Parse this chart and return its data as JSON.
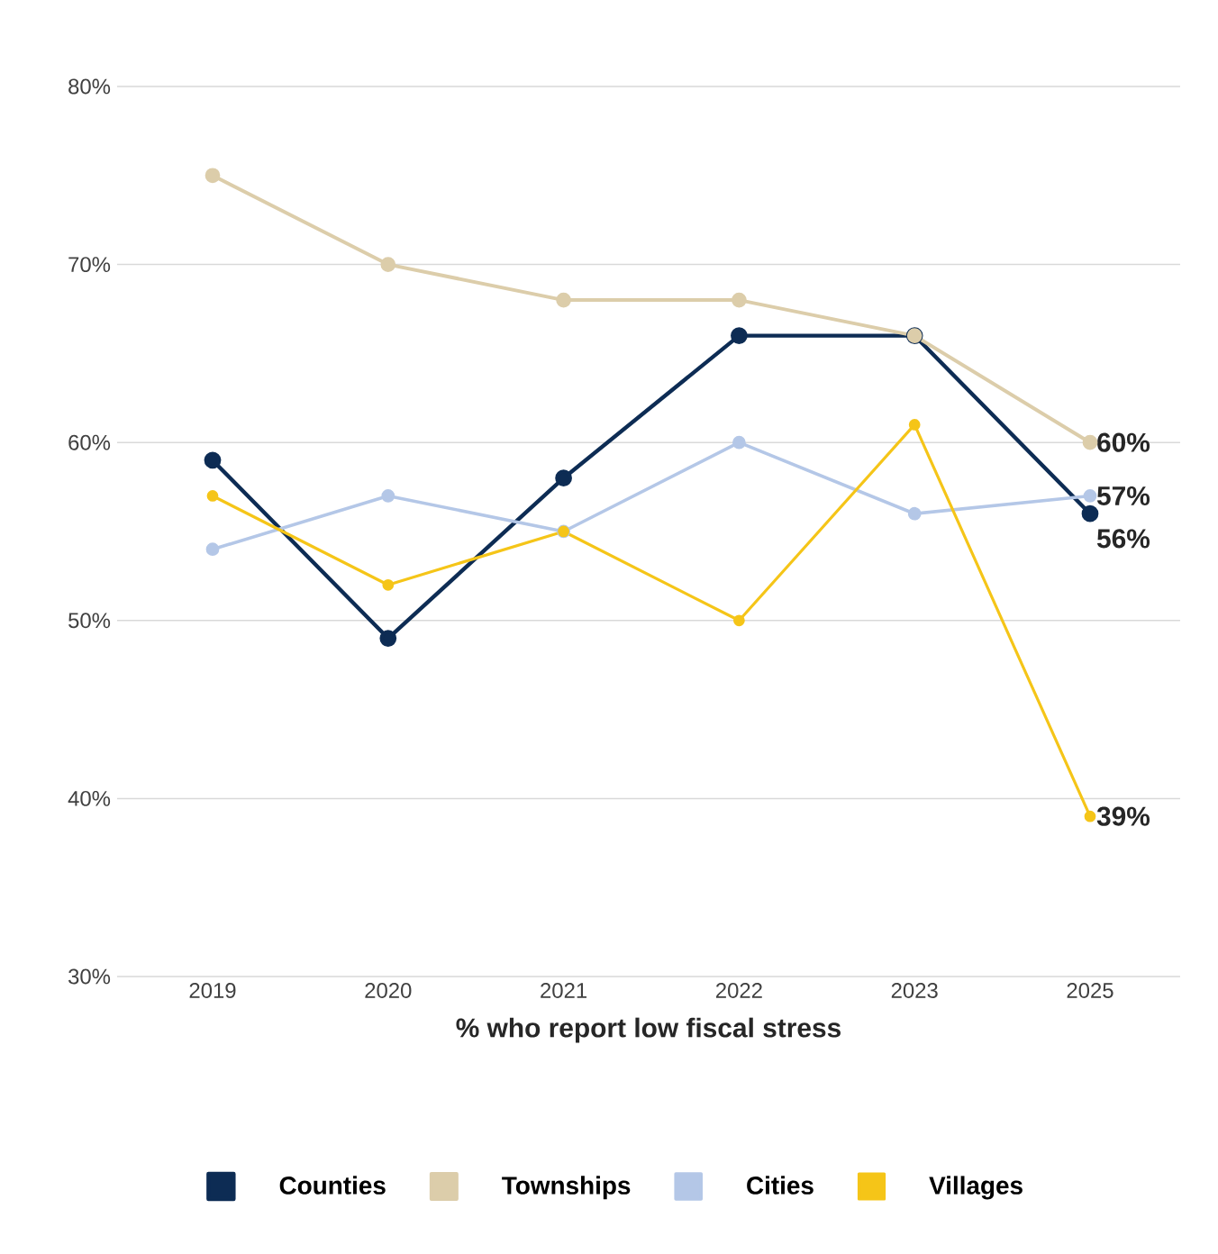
{
  "chart_data": {
    "type": "line",
    "xlabel": "% who report low fiscal stress",
    "categories": [
      "2019",
      "2020",
      "2021",
      "2022",
      "2023",
      "2025"
    ],
    "series": [
      {
        "name": "Counties",
        "color": "#0d2c54",
        "values": [
          59,
          49,
          58,
          66,
          66,
          56
        ],
        "value_labels": [
          null,
          null,
          null,
          null,
          null,
          "56%"
        ]
      },
      {
        "name": "Townships",
        "color": "#dccdaa",
        "values": [
          75,
          70,
          68,
          68,
          66,
          60
        ],
        "value_labels": [
          null,
          null,
          null,
          null,
          null,
          "60%"
        ]
      },
      {
        "name": "Cities",
        "color": "#b4c7e7",
        "values": [
          54,
          57,
          55,
          60,
          56,
          57
        ],
        "value_labels": [
          null,
          null,
          null,
          null,
          null,
          "57%"
        ]
      },
      {
        "name": "Villages",
        "color": "#f5c518",
        "values": [
          57,
          52,
          55,
          50,
          61,
          39
        ],
        "value_labels": [
          null,
          null,
          null,
          null,
          null,
          "39%"
        ]
      }
    ],
    "ylim": [
      30,
      80
    ],
    "yticks": [
      {
        "value": 30,
        "label": "30%"
      },
      {
        "value": 40,
        "label": "40%"
      },
      {
        "value": 50,
        "label": "50%"
      },
      {
        "value": 60,
        "label": "60%"
      },
      {
        "value": 70,
        "label": "70%"
      },
      {
        "value": 80,
        "label": "80%"
      }
    ],
    "grid": "y",
    "legend": "bottom",
    "marker": "circle",
    "line_style": "solid"
  }
}
